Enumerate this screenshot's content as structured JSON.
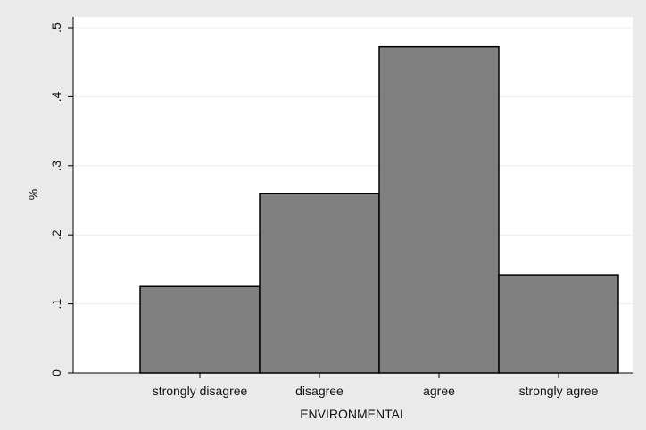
{
  "chart_data": {
    "type": "bar",
    "categories": [
      "strongly disagree",
      "disagree",
      "agree",
      "strongly agree"
    ],
    "values": [
      0.125,
      0.26,
      0.472,
      0.142
    ],
    "xlabel": "ENVIRONMENTAL",
    "ylabel": "%",
    "ylim": [
      0,
      0.5
    ],
    "yticks": [
      0,
      0.1,
      0.2,
      0.3,
      0.4,
      0.5
    ],
    "ytick_labels": [
      "0",
      ".1",
      ".2",
      ".3",
      ".4",
      ".5"
    ],
    "grid": true,
    "bar_color": "#808080",
    "background_color": "#eaeaea",
    "plot_background_color": "#ffffff",
    "gridline_color": "#e8eef2"
  }
}
